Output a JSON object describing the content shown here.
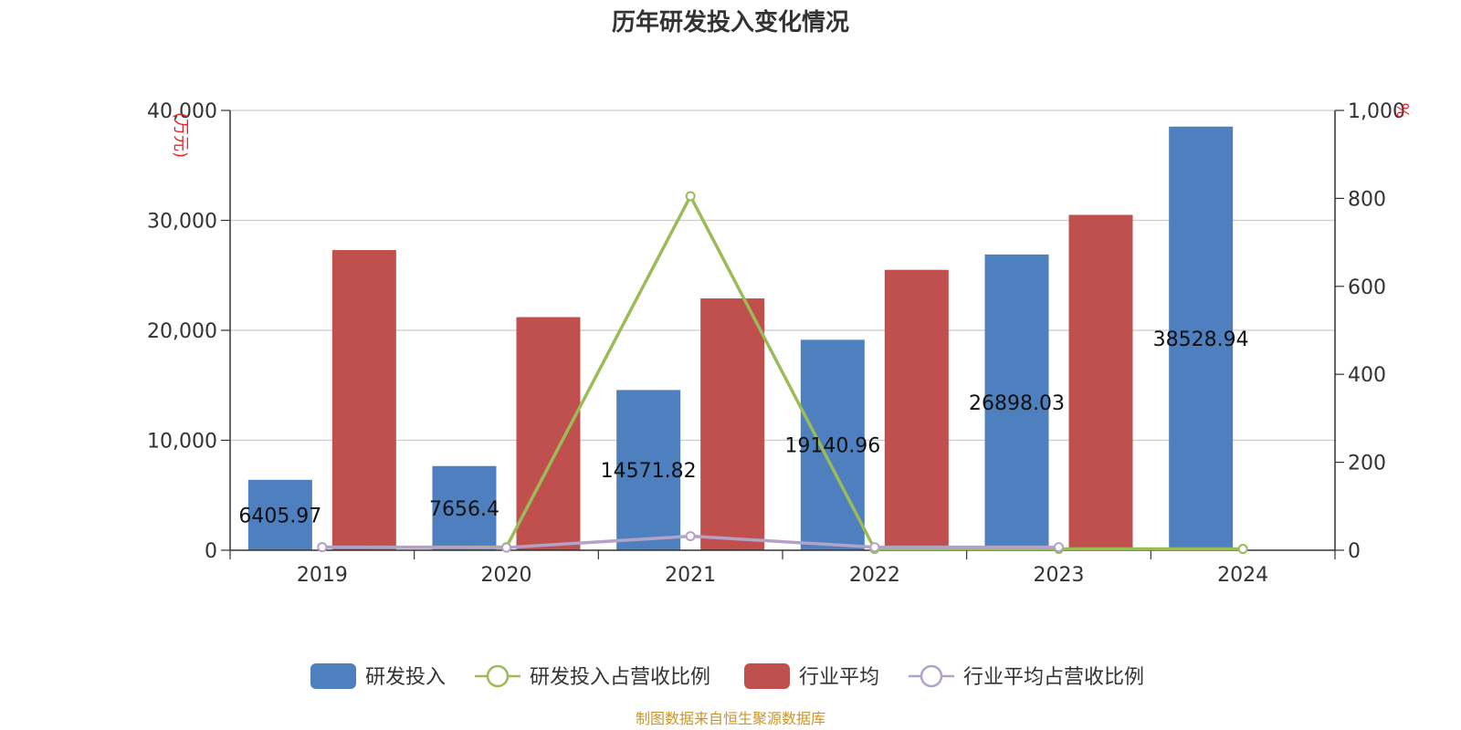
{
  "chart_data": {
    "type": "bar",
    "title": "历年研发投入变化情况",
    "categories": [
      "2019",
      "2020",
      "2021",
      "2022",
      "2023",
      "2024"
    ],
    "y_left": {
      "unit": "(万元)",
      "range": [
        0,
        40000
      ],
      "ticks": [
        "0",
        "10,000",
        "20,000",
        "30,000",
        "40,000"
      ]
    },
    "y_right": {
      "unit": "%",
      "range": [
        0,
        1000
      ],
      "ticks": [
        "0",
        "200",
        "400",
        "600",
        "800",
        "1,000"
      ]
    },
    "series": [
      {
        "name": "研发投入",
        "kind": "bar",
        "axis": "left",
        "color": "#4e7fbe",
        "values": [
          6405.97,
          7656.4,
          14571.82,
          19140.96,
          26898.03,
          38528.94
        ],
        "labels": [
          "6405.97",
          "7656.4",
          "14571.82",
          "19140.96",
          "26898.03",
          "38528.94"
        ]
      },
      {
        "name": "研发投入占营收比例",
        "kind": "line",
        "axis": "right",
        "color": "#9bbb59",
        "values": [
          7,
          7,
          805,
          3,
          3,
          3
        ]
      },
      {
        "name": "行业平均",
        "kind": "bar",
        "axis": "left",
        "color": "#c0504d",
        "values": [
          27300,
          21200,
          22900,
          25500,
          30500,
          null
        ]
      },
      {
        "name": "行业平均占营收比例",
        "kind": "line",
        "axis": "right",
        "color": "#b3a2c7",
        "values": [
          7,
          6,
          32,
          7,
          7,
          null
        ]
      }
    ],
    "grid": true,
    "legend": "bottom"
  },
  "source": "制图数据来自恒生聚源数据库"
}
